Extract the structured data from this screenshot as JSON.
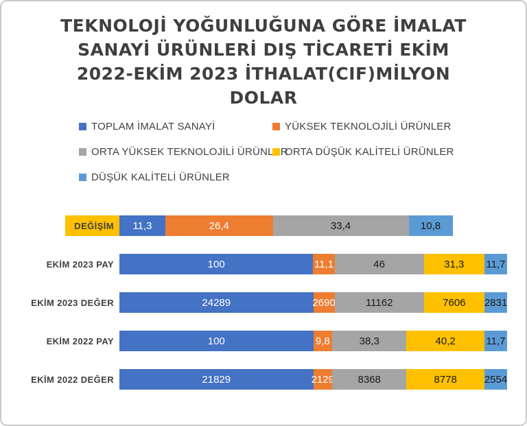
{
  "title": {
    "text": "TEKNOLOJİ YOĞUNLUĞUNA GÖRE İMALAT\nSANAYİ ÜRÜNLERİ DIŞ TİCARETİ EKİM\n2022-EKİM 2023 İTHALAT(CIF)MİLYON\nDOLAR"
  },
  "chart_data": {
    "type": "bar",
    "subtype": "100-percent-stacked-horizontal",
    "title": "TEKNOLOJİ YOĞUNLUĞUNA GÖRE İMALAT SANAYİ ÜRÜNLERİ DIŞ TİCARETİ EKİM 2022-EKİM 2023 İTHALAT(CIF)MİLYON DOLAR",
    "legend_position": "top",
    "grid": false,
    "categories": [
      "DEĞİŞİM",
      "EKİM 2023 PAY",
      "EKİM 2023 DEĞER",
      "EKİM 2022 PAY",
      "EKİM 2022 DEĞER"
    ],
    "series": [
      {
        "name": "TOPLAM İMALAT SANAYİ",
        "color": "#4472C4",
        "label_color": "#FFFFFF",
        "values": [
          11.3,
          100,
          24289,
          100,
          21829
        ],
        "labels": [
          "11,3",
          "100",
          "24289",
          "100",
          "21829"
        ]
      },
      {
        "name": "YÜKSEK TEKNOLOJİLİ ÜRÜNLER",
        "color": "#ED7D31",
        "label_color": "#FFFFFF",
        "values": [
          26.4,
          11.1,
          2690,
          9.8,
          2129
        ],
        "labels": [
          "26,4",
          "11,1",
          "2690",
          "9,8",
          "2129"
        ]
      },
      {
        "name": "ORTA YÜKSEK TEKNOLOJİLİ ÜRÜNLER",
        "color": "#A5A5A5",
        "label_color": "#1a1a1a",
        "values": [
          33.4,
          46,
          11162,
          38.3,
          8368
        ],
        "labels": [
          "33,4",
          "46",
          "11162",
          "38,3",
          "8368"
        ]
      },
      {
        "name": "ORTA DÜŞÜK KALİTELİ ÜRÜNLER",
        "color": "#FFC000",
        "label_color": "#1a1a1a",
        "values": [
          -13.4,
          31.3,
          7606,
          40.2,
          8778
        ],
        "labels": [
          "",
          "31,3",
          "7606",
          "40,2",
          "8778"
        ]
      },
      {
        "name": "DÜŞÜK KALİTELİ ÜRÜNLER",
        "color": "#5B9BD5",
        "label_color": "#1a1a1a",
        "values": [
          10.8,
          11.7,
          2831,
          11.7,
          2554
        ],
        "labels": [
          "10,8",
          "11,7",
          "2831",
          "11,7",
          "2554"
        ]
      }
    ]
  }
}
